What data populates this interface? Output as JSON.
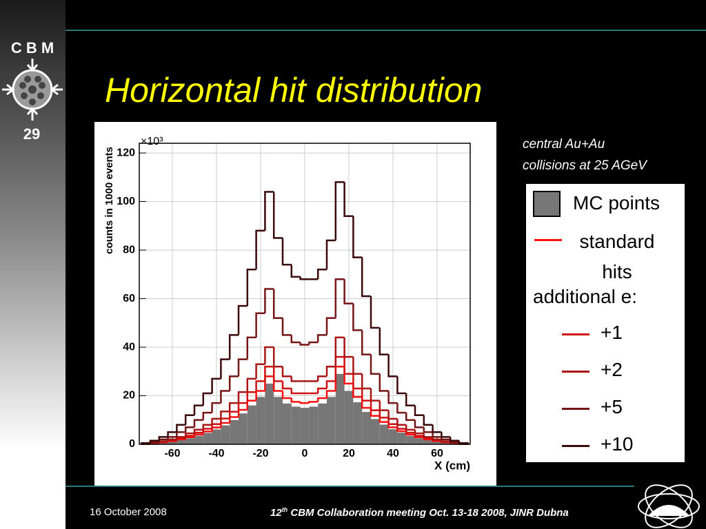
{
  "slide": {
    "logo": "C B M",
    "number": "29",
    "title": "Horizontal hit distribution",
    "note_lines": [
      "central Au+Au",
      "collisions at 25 AGeV"
    ],
    "legend_title": "additional e:",
    "footer": {
      "date": "16 October 2008",
      "number": "12",
      "sup": "th",
      "text": "CBM  Collaboration meeting Oct. 13-18 2008, JINR Dubna"
    }
  },
  "chart_data": {
    "type": "histogram",
    "xlabel": "X (cm)",
    "ylabel": "counts in 1000 events",
    "y_multiplier": "×10³",
    "xlim": [
      -75,
      75
    ],
    "ylim": [
      0,
      124
    ],
    "xticks": [
      -60,
      -40,
      -20,
      0,
      20,
      40,
      60
    ],
    "yticks": [
      0,
      20,
      40,
      60,
      80,
      100,
      120
    ],
    "grid": true,
    "bins": [
      -74,
      -70,
      -66,
      -62,
      -58,
      -54,
      -50,
      -46,
      -42,
      -38,
      -34,
      -30,
      -26,
      -22,
      -18,
      -14,
      -10,
      -6,
      -2,
      2,
      6,
      10,
      14,
      18,
      22,
      26,
      30,
      34,
      38,
      42,
      46,
      50,
      54,
      58,
      62,
      66,
      70,
      74
    ],
    "series": [
      {
        "name": "MC points",
        "color": "#777777",
        "histtype": "stepfilled",
        "values": [
          0.1,
          0.3,
          0.7,
          1.1,
          1.7,
          2.5,
          3.5,
          4.7,
          6.1,
          7.8,
          10,
          12.7,
          16,
          19.5,
          25,
          19.5,
          16.8,
          15.5,
          15,
          15.5,
          16.8,
          19.5,
          29,
          22,
          17.3,
          13.3,
          10.4,
          8.1,
          6.2,
          4.8,
          3.5,
          2.5,
          1.7,
          1.1,
          0.7,
          0.3,
          0.1
        ]
      },
      {
        "name": "standard hits",
        "color": "#ff1010",
        "histtype": "step",
        "values": [
          0.1,
          0.4,
          0.8,
          1.3,
          2,
          2.9,
          4,
          5.3,
          6.9,
          8.8,
          11.2,
          14.2,
          18,
          22,
          28,
          22,
          19,
          17.5,
          17,
          17.5,
          19,
          22,
          32,
          25,
          19.5,
          15,
          11.7,
          9.2,
          7,
          5.4,
          4,
          2.9,
          2,
          1.3,
          0.8,
          0.4,
          0.1
        ]
      },
      {
        "name": "+1",
        "color": "#d01010",
        "histtype": "step",
        "values": [
          0.1,
          0.5,
          1,
          1.6,
          2.4,
          3.5,
          4.8,
          6.4,
          8.3,
          10.6,
          13.4,
          17,
          21.5,
          26,
          32,
          26,
          23,
          21,
          21,
          21,
          23,
          26,
          36,
          29,
          23,
          18,
          14,
          11,
          8.3,
          6.4,
          4.8,
          3.5,
          2.4,
          1.6,
          1,
          0.5,
          0.1
        ]
      },
      {
        "name": "+2",
        "color": "#a81414",
        "histtype": "step",
        "values": [
          0.2,
          0.6,
          1.2,
          2,
          3,
          4.5,
          6,
          8,
          10.5,
          13.5,
          17,
          21.5,
          27,
          33,
          40,
          32,
          28,
          26,
          26,
          26,
          28,
          32,
          44,
          36,
          29,
          23,
          18,
          14,
          10.5,
          8,
          6,
          4.5,
          3,
          2,
          1.2,
          0.6,
          0.2
        ]
      },
      {
        "name": "+5",
        "color": "#741414",
        "histtype": "step",
        "values": [
          0.3,
          1,
          2,
          3,
          5,
          7,
          10,
          13,
          17,
          22,
          28,
          35,
          44,
          54,
          64,
          52,
          45,
          42,
          41,
          42,
          45,
          52,
          68,
          58,
          47,
          37,
          29,
          22,
          17,
          13,
          10,
          7,
          5,
          3,
          2,
          1,
          0.3
        ]
      },
      {
        "name": "+10",
        "color": "#3a0808",
        "histtype": "step",
        "values": [
          0.5,
          1.5,
          3,
          5,
          8,
          12,
          16,
          21,
          27,
          35,
          45,
          57,
          72,
          88,
          104,
          85,
          74,
          69,
          68,
          68,
          72,
          84,
          108,
          94,
          77,
          61,
          48,
          37,
          28,
          21,
          16,
          12,
          8,
          5,
          3,
          1.5,
          0.5
        ]
      }
    ]
  }
}
